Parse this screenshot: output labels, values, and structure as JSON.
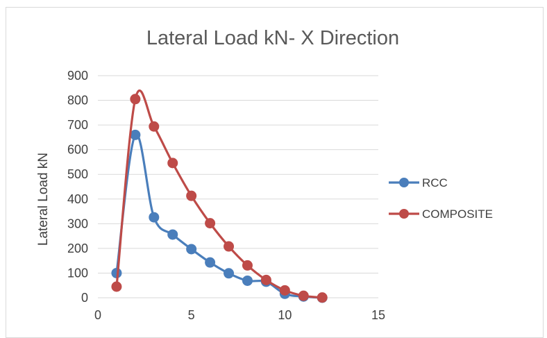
{
  "chart_data": {
    "type": "line",
    "title": "Lateral Load kN- X Direction",
    "xlabel": "",
    "ylabel": "Lateral Load kN",
    "xlim": [
      0,
      15
    ],
    "ylim": [
      0,
      900
    ],
    "xticks": [
      0,
      5,
      10,
      15
    ],
    "yticks": [
      0,
      100,
      200,
      300,
      400,
      500,
      600,
      700,
      800,
      900
    ],
    "grid": "horizontal",
    "legend_position": "right",
    "smooth": true,
    "series": [
      {
        "name": "RCC",
        "color": "#4a7ebb",
        "x": [
          1,
          2,
          3,
          4,
          5,
          6,
          7,
          8,
          9,
          10,
          11,
          12
        ],
        "y": [
          100,
          660,
          326,
          256,
          197,
          143,
          99,
          69,
          65,
          16,
          5,
          0
        ]
      },
      {
        "name": "COMPOSITE",
        "color": "#be4b48",
        "x": [
          1,
          2,
          3,
          4,
          5,
          6,
          7,
          8,
          9,
          10,
          11,
          12
        ],
        "y": [
          45,
          805,
          694,
          546,
          413,
          302,
          208,
          131,
          72,
          30,
          8,
          1
        ]
      }
    ]
  }
}
